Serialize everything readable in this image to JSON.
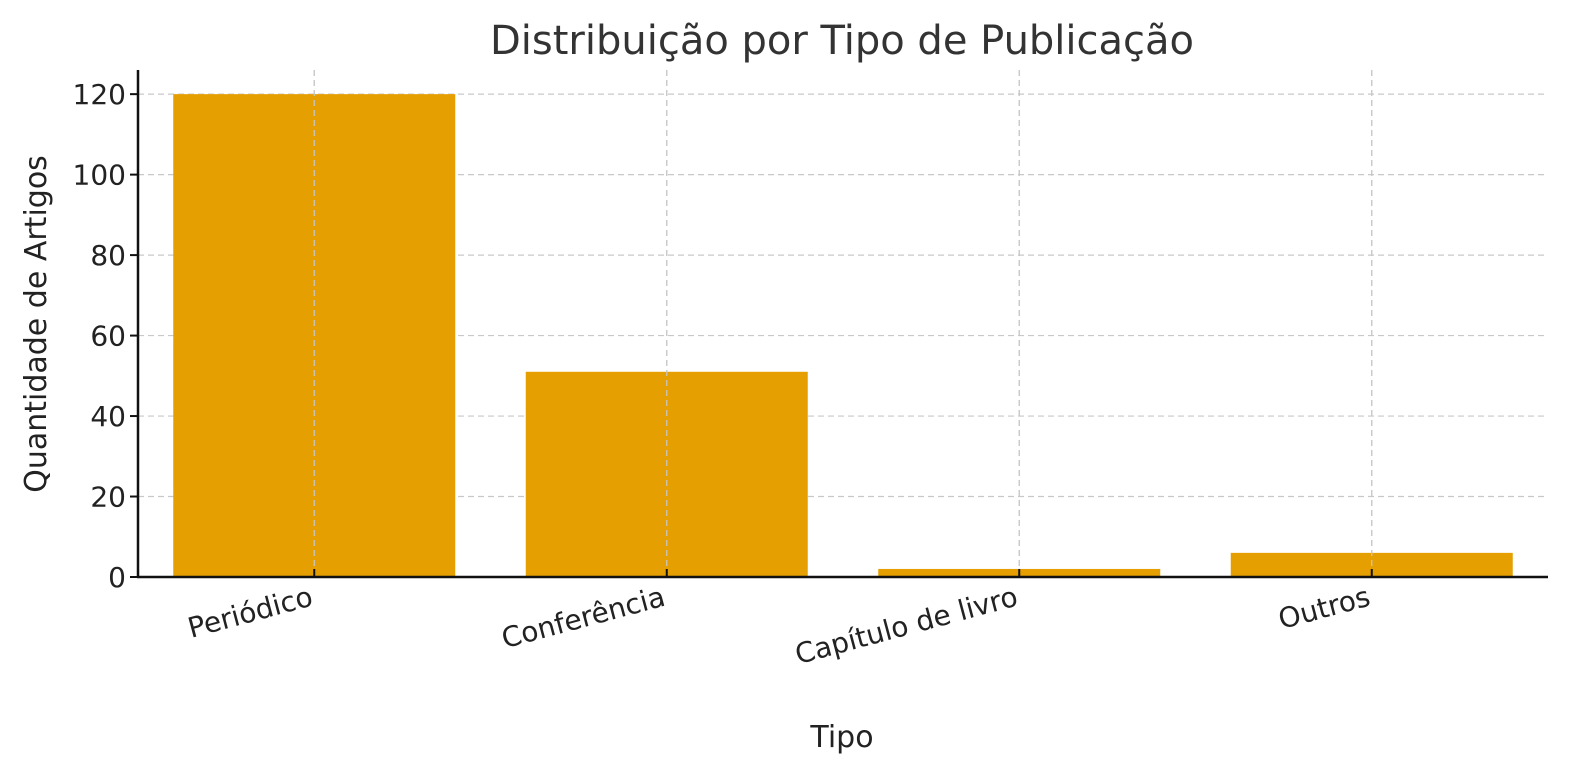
{
  "chart_data": {
    "type": "bar",
    "title": "Distribuição por Tipo de Publicação",
    "xlabel": "Tipo",
    "ylabel": "Quantidade de Artigos",
    "categories": [
      "Periódico",
      "Conferência",
      "Capítulo de livro",
      "Outros"
    ],
    "values": [
      120,
      51,
      2,
      6
    ],
    "ylim": [
      0,
      126
    ],
    "yticks": [
      0,
      20,
      40,
      60,
      80,
      100,
      120
    ],
    "bar_color": "#E69F00",
    "grid": true
  }
}
